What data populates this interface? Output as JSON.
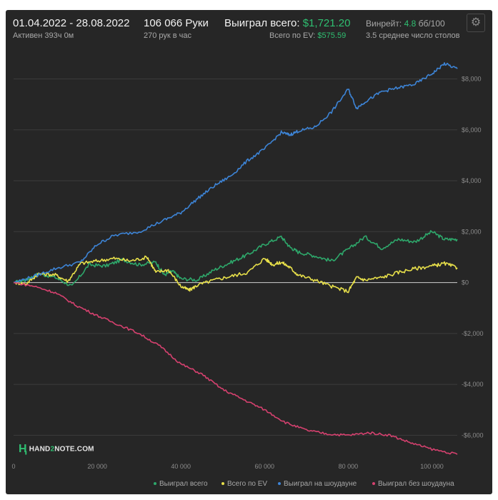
{
  "header": {
    "date_range": "01.04.2022 - 28.08.2022",
    "active": "Активен 393ч 0м",
    "hands": "106 066 Руки",
    "hands_per_hour": "270 рук в час",
    "won_label": "Выиграл всего:",
    "won_value": "$1,721.20",
    "ev_label": "Всего по EV:",
    "ev_value": "$575.59",
    "winrate_label": "Винрейт:",
    "winrate_value": "4.8",
    "winrate_unit": "бб/100",
    "tables": "3.5 среднее число столов"
  },
  "logo": {
    "part1": "HAND",
    "part2": "2",
    "part3": "NOTE.COM"
  },
  "colors": {
    "won_total": "#2ea86b",
    "ev_total": "#e8e04a",
    "showdown": "#3d84d6",
    "non_showdown": "#d6416f",
    "grid": "#3c3c3c",
    "zero_line": "#cfcfcf"
  },
  "chart_data": {
    "type": "line",
    "xlim": [
      0,
      106066
    ],
    "ylim": [
      -7000,
      8800
    ],
    "x_ticks": [
      0,
      20000,
      40000,
      60000,
      80000,
      100000
    ],
    "x_tick_labels": [
      "0",
      "20 000",
      "40 000",
      "60 000",
      "80 000",
      "100 000"
    ],
    "y_ticks": [
      -6000,
      -4000,
      -2000,
      0,
      2000,
      4000,
      6000,
      8000
    ],
    "y_tick_labels": [
      "-$6,000",
      "-$4,000",
      "-$2,000",
      "$0",
      "$2,000",
      "$4,000",
      "$6,000",
      "$8,000"
    ],
    "grid": "horizontal",
    "legend_position": "bottom-right",
    "series": [
      {
        "name": "Выиграл всего",
        "x": [
          0,
          3000,
          6000,
          10000,
          14000,
          18000,
          22000,
          26000,
          30000,
          34000,
          36000,
          38000,
          40000,
          44000,
          48000,
          52000,
          56000,
          60000,
          64000,
          66000,
          68000,
          72000,
          76000,
          80000,
          84000,
          88000,
          92000,
          96000,
          100000,
          103000,
          106066
        ],
        "y": [
          0,
          100,
          350,
          200,
          -150,
          700,
          650,
          900,
          700,
          800,
          300,
          450,
          150,
          100,
          500,
          800,
          1100,
          1500,
          1800,
          1400,
          1200,
          1050,
          850,
          1300,
          1800,
          1350,
          1700,
          1600,
          2000,
          1700,
          1700
        ]
      },
      {
        "name": "Всего по EV",
        "x": [
          0,
          3000,
          6000,
          10000,
          13000,
          16000,
          20000,
          24000,
          28000,
          32000,
          34000,
          37000,
          40000,
          42000,
          44000,
          48000,
          52000,
          56000,
          60000,
          62000,
          64000,
          66000,
          68000,
          72000,
          76000,
          80000,
          82000,
          84000,
          88000,
          92000,
          96000,
          100000,
          103000,
          106066
        ],
        "y": [
          0,
          -50,
          350,
          300,
          50,
          750,
          850,
          950,
          850,
          1000,
          400,
          500,
          -150,
          -300,
          -100,
          100,
          250,
          400,
          950,
          700,
          800,
          600,
          300,
          100,
          -150,
          -350,
          200,
          100,
          200,
          400,
          550,
          650,
          750,
          580
        ]
      },
      {
        "name": "Выиграл на шоудауне",
        "x": [
          0,
          5000,
          10000,
          16000,
          20000,
          24000,
          30000,
          36000,
          40000,
          44000,
          48000,
          52000,
          56000,
          60000,
          64000,
          66000,
          68000,
          72000,
          76000,
          80000,
          82000,
          84000,
          88000,
          92000,
          96000,
          100000,
          103000,
          106066
        ],
        "y": [
          0,
          250,
          550,
          800,
          1500,
          1850,
          2000,
          2450,
          2750,
          3300,
          3800,
          4200,
          4800,
          5250,
          5900,
          5800,
          5950,
          6100,
          6700,
          7600,
          6850,
          7100,
          7500,
          7650,
          7800,
          8200,
          8600,
          8400
        ]
      },
      {
        "name": "Выиграл без шоудауна",
        "x": [
          0,
          5000,
          10000,
          15000,
          20000,
          25000,
          30000,
          35000,
          40000,
          45000,
          50000,
          55000,
          60000,
          65000,
          70000,
          75000,
          80000,
          85000,
          90000,
          95000,
          100000,
          106066
        ],
        "y": [
          0,
          -150,
          -400,
          -900,
          -1300,
          -1650,
          -2000,
          -2500,
          -3200,
          -3600,
          -4200,
          -4600,
          -5000,
          -5500,
          -5800,
          -5950,
          -6000,
          -5900,
          -6000,
          -6300,
          -6550,
          -6750
        ]
      }
    ]
  }
}
